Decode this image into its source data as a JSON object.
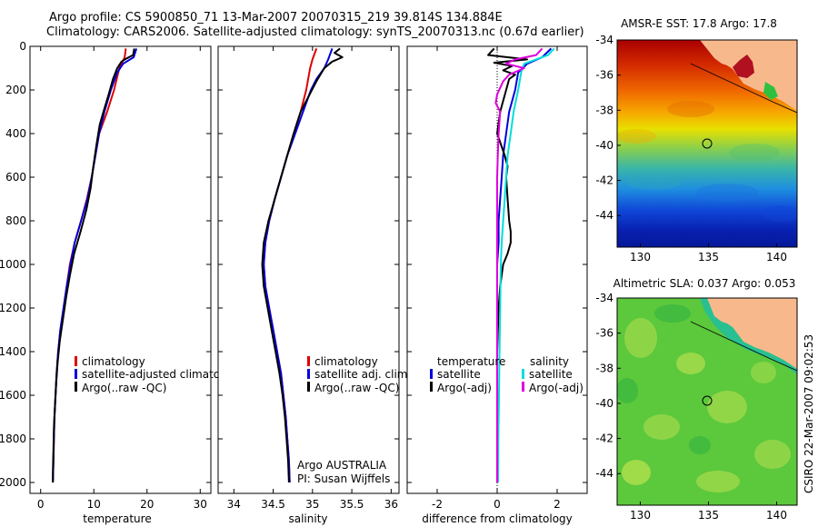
{
  "header": {
    "line1": "Argo profile: CS 5900850_71 13-Mar-2007 20070315_219 39.814S 134.884E",
    "line2": "Climatology: CARS2006. Satellite-adjusted climatology: synTS_20070313.nc (0.67d earlier)"
  },
  "footer": {
    "credit": "CSIRO 22-Mar-2007 09:02:53"
  },
  "colors": {
    "climatology": "#dd0000",
    "satellite": "#0000dd",
    "argo": "#000000",
    "salinity_satellite": "#00dddd",
    "salinity_argo": "#dd00dd",
    "land": "#f7b98c"
  },
  "chart_data": [
    {
      "id": "temperature",
      "type": "line",
      "xlabel": "temperature",
      "ylabel": "",
      "xlim": [
        -2,
        32
      ],
      "ylim": [
        2050,
        0
      ],
      "xticks": [
        0,
        10,
        20,
        30
      ],
      "yticks": [
        0,
        200,
        400,
        600,
        800,
        1000,
        1200,
        1400,
        1600,
        1800,
        2000
      ],
      "legend": {
        "placement": "bottom-right",
        "items": [
          "climatology",
          "satellite-adjusted climatology",
          "Argo(..raw -QC)"
        ]
      },
      "series": [
        {
          "name": "climatology",
          "color": "#dd0000",
          "points": [
            [
              16.0,
              10
            ],
            [
              15.8,
              50
            ],
            [
              14.8,
              100
            ],
            [
              13.8,
              200
            ],
            [
              12.5,
              300
            ],
            [
              11.0,
              400
            ],
            [
              10.3,
              500
            ],
            [
              9.6,
              600
            ],
            [
              8.7,
              700
            ],
            [
              7.6,
              800
            ],
            [
              6.4,
              900
            ],
            [
              5.5,
              1000
            ],
            [
              4.9,
              1100
            ],
            [
              4.3,
              1200
            ],
            [
              3.7,
              1300
            ],
            [
              3.3,
              1400
            ],
            [
              3.0,
              1500
            ],
            [
              2.8,
              1600
            ],
            [
              2.6,
              1700
            ],
            [
              2.5,
              1800
            ],
            [
              2.4,
              1900
            ],
            [
              2.3,
              1990
            ]
          ]
        },
        {
          "name": "satellite-adjusted climatology",
          "color": "#0000dd",
          "points": [
            [
              18.0,
              10
            ],
            [
              17.5,
              50
            ],
            [
              15.5,
              80
            ],
            [
              14.4,
              120
            ],
            [
              13.2,
              200
            ],
            [
              12.0,
              300
            ],
            [
              11.0,
              400
            ],
            [
              10.3,
              500
            ],
            [
              9.6,
              600
            ],
            [
              8.8,
              700
            ],
            [
              7.6,
              800
            ],
            [
              6.4,
              900
            ],
            [
              5.6,
              1000
            ],
            [
              4.9,
              1100
            ],
            [
              4.3,
              1200
            ],
            [
              3.7,
              1300
            ],
            [
              3.3,
              1400
            ],
            [
              3.0,
              1500
            ],
            [
              2.8,
              1600
            ],
            [
              2.6,
              1700
            ],
            [
              2.5,
              1800
            ],
            [
              2.4,
              1900
            ],
            [
              2.3,
              2000
            ]
          ]
        },
        {
          "name": "Argo(..raw -QC)",
          "color": "#000000",
          "points": [
            [
              17.6,
              10
            ],
            [
              17.4,
              40
            ],
            [
              16.2,
              55
            ],
            [
              15.2,
              70
            ],
            [
              14.4,
              100
            ],
            [
              13.6,
              150
            ],
            [
              12.8,
              220
            ],
            [
              11.8,
              300
            ],
            [
              11.1,
              360
            ],
            [
              10.5,
              450
            ],
            [
              9.9,
              550
            ],
            [
              9.4,
              650
            ],
            [
              8.6,
              750
            ],
            [
              7.5,
              850
            ],
            [
              6.3,
              950
            ],
            [
              5.5,
              1050
            ],
            [
              4.8,
              1150
            ],
            [
              4.2,
              1250
            ],
            [
              3.6,
              1350
            ],
            [
              3.2,
              1450
            ],
            [
              2.9,
              1550
            ],
            [
              2.7,
              1650
            ],
            [
              2.5,
              1750
            ],
            [
              2.4,
              1850
            ],
            [
              2.3,
              1950
            ],
            [
              2.3,
              2000
            ]
          ]
        }
      ]
    },
    {
      "id": "salinity",
      "type": "line",
      "xlabel": "salinity",
      "ylabel": "",
      "xlim": [
        33.8,
        36.1
      ],
      "ylim": [
        2050,
        0
      ],
      "xticks": [
        34,
        34.5,
        35,
        35.5,
        36
      ],
      "xticklabels": [
        "34",
        "34.5",
        "35",
        "35.5",
        "36"
      ],
      "legend": {
        "placement": "bottom-right",
        "items": [
          "climatology",
          "satellite adj. clim.",
          "Argo(..raw -QC)"
        ]
      },
      "annotations": [
        "Argo AUSTRALIA",
        "PI: Susan Wijffels"
      ],
      "series": [
        {
          "name": "climatology",
          "color": "#dd0000",
          "points": [
            [
              35.05,
              10
            ],
            [
              35.0,
              60
            ],
            [
              34.97,
              100
            ],
            [
              34.92,
              200
            ],
            [
              34.85,
              300
            ],
            [
              34.76,
              400
            ],
            [
              34.68,
              500
            ],
            [
              34.6,
              600
            ],
            [
              34.52,
              700
            ],
            [
              34.45,
              800
            ],
            [
              34.4,
              900
            ],
            [
              34.38,
              1000
            ],
            [
              34.4,
              1100
            ],
            [
              34.45,
              1200
            ],
            [
              34.5,
              1300
            ],
            [
              34.55,
              1400
            ],
            [
              34.6,
              1500
            ],
            [
              34.63,
              1600
            ],
            [
              34.66,
              1700
            ],
            [
              34.68,
              1800
            ],
            [
              34.7,
              1900
            ],
            [
              34.71,
              2000
            ]
          ]
        },
        {
          "name": "satellite adj. clim.",
          "color": "#0000dd",
          "points": [
            [
              35.25,
              10
            ],
            [
              35.2,
              60
            ],
            [
              35.15,
              100
            ],
            [
              35.05,
              150
            ],
            [
              34.98,
              200
            ],
            [
              34.88,
              300
            ],
            [
              34.78,
              400
            ],
            [
              34.68,
              500
            ],
            [
              34.6,
              600
            ],
            [
              34.52,
              700
            ],
            [
              34.45,
              800
            ],
            [
              34.4,
              900
            ],
            [
              34.38,
              1000
            ],
            [
              34.4,
              1100
            ],
            [
              34.45,
              1200
            ],
            [
              34.5,
              1300
            ],
            [
              34.55,
              1400
            ],
            [
              34.6,
              1500
            ],
            [
              34.63,
              1600
            ],
            [
              34.66,
              1700
            ],
            [
              34.68,
              1800
            ],
            [
              34.7,
              1900
            ],
            [
              34.71,
              2000
            ]
          ]
        },
        {
          "name": "Argo(..raw -QC)",
          "color": "#000000",
          "points": [
            [
              35.35,
              10
            ],
            [
              35.28,
              30
            ],
            [
              35.38,
              50
            ],
            [
              35.25,
              70
            ],
            [
              35.15,
              100
            ],
            [
              35.05,
              160
            ],
            [
              34.95,
              230
            ],
            [
              34.85,
              300
            ],
            [
              34.76,
              400
            ],
            [
              34.68,
              500
            ],
            [
              34.6,
              600
            ],
            [
              34.52,
              700
            ],
            [
              34.44,
              800
            ],
            [
              34.38,
              900
            ],
            [
              34.36,
              1000
            ],
            [
              34.38,
              1100
            ],
            [
              34.43,
              1200
            ],
            [
              34.48,
              1300
            ],
            [
              34.53,
              1400
            ],
            [
              34.58,
              1500
            ],
            [
              34.62,
              1600
            ],
            [
              34.65,
              1700
            ],
            [
              34.67,
              1800
            ],
            [
              34.69,
              1900
            ],
            [
              34.7,
              2000
            ]
          ]
        }
      ]
    },
    {
      "id": "difference",
      "type": "line",
      "xlabel": "difference from climatology",
      "ylabel": "",
      "xlim": [
        -3.0,
        3.0
      ],
      "ylim": [
        2050,
        0
      ],
      "xticks": [
        -2,
        0,
        2
      ],
      "legend": {
        "placement": "bottom",
        "items": [
          "temperature",
          "satellite",
          "Argo(-adj)",
          "salinity",
          "satellite",
          "Argo(-adj)"
        ]
      },
      "series": [
        {
          "name": "temperature satellite",
          "color": "#0000dd",
          "points": [
            [
              1.8,
              10
            ],
            [
              1.5,
              50
            ],
            [
              1.0,
              80
            ],
            [
              0.7,
              120
            ],
            [
              0.6,
              200
            ],
            [
              0.4,
              300
            ],
            [
              0.3,
              400
            ],
            [
              0.2,
              500
            ],
            [
              0.15,
              600
            ],
            [
              0.1,
              700
            ],
            [
              0.05,
              800
            ],
            [
              0.05,
              900
            ],
            [
              0.0,
              1000
            ],
            [
              0.0,
              1200
            ],
            [
              0.0,
              1400
            ],
            [
              0.0,
              1600
            ],
            [
              0.0,
              1800
            ],
            [
              0.0,
              2000
            ]
          ]
        },
        {
          "name": "temperature Argo(-adj)",
          "color": "#000000",
          "points": [
            [
              -0.1,
              10
            ],
            [
              -0.3,
              40
            ],
            [
              1.0,
              60
            ],
            [
              -0.1,
              75
            ],
            [
              0.5,
              90
            ],
            [
              0.2,
              110
            ],
            [
              0.6,
              130
            ],
            [
              0.4,
              150
            ],
            [
              0.3,
              200
            ],
            [
              0.2,
              250
            ],
            [
              0.1,
              300
            ],
            [
              0.05,
              350
            ],
            [
              0.0,
              400
            ],
            [
              0.25,
              500
            ],
            [
              0.35,
              550
            ],
            [
              0.3,
              600
            ],
            [
              0.35,
              700
            ],
            [
              0.4,
              800
            ],
            [
              0.45,
              850
            ],
            [
              0.45,
              900
            ],
            [
              0.35,
              950
            ],
            [
              0.2,
              1000
            ],
            [
              0.1,
              1100
            ],
            [
              0.05,
              1200
            ],
            [
              0.0,
              1400
            ],
            [
              0.0,
              1600
            ],
            [
              0.0,
              1800
            ],
            [
              0.0,
              2000
            ]
          ]
        },
        {
          "name": "salinity satellite",
          "color": "#00dddd",
          "points": [
            [
              1.9,
              10
            ],
            [
              1.7,
              40
            ],
            [
              0.9,
              80
            ],
            [
              0.8,
              120
            ],
            [
              0.7,
              200
            ],
            [
              0.55,
              300
            ],
            [
              0.45,
              400
            ],
            [
              0.35,
              500
            ],
            [
              0.3,
              600
            ],
            [
              0.25,
              700
            ],
            [
              0.2,
              800
            ],
            [
              0.15,
              900
            ],
            [
              0.12,
              1000
            ],
            [
              0.1,
              1200
            ],
            [
              0.08,
              1400
            ],
            [
              0.06,
              1600
            ],
            [
              0.04,
              1800
            ],
            [
              0.03,
              2000
            ]
          ]
        },
        {
          "name": "salinity Argo(-adj)",
          "color": "#dd00dd",
          "points": [
            [
              1.5,
              10
            ],
            [
              1.3,
              40
            ],
            [
              0.6,
              60
            ],
            [
              0.3,
              80
            ],
            [
              0.9,
              100
            ],
            [
              0.4,
              130
            ],
            [
              0.2,
              160
            ],
            [
              0.0,
              220
            ],
            [
              -0.05,
              260
            ],
            [
              0.1,
              300
            ],
            [
              0.05,
              400
            ],
            [
              0.02,
              500
            ],
            [
              0.0,
              600
            ],
            [
              0.0,
              800
            ],
            [
              0.0,
              1000
            ],
            [
              0.0,
              1200
            ],
            [
              0.0,
              1400
            ],
            [
              0.0,
              1600
            ],
            [
              0.0,
              1800
            ],
            [
              0.0,
              2000
            ]
          ]
        }
      ]
    },
    {
      "id": "sst-map",
      "type": "heatmap",
      "title": "AMSR-E SST: 17.8 Argo: 17.8",
      "xlim": [
        128.3,
        141.5
      ],
      "ylim": [
        -45.8,
        -34
      ],
      "xticks": [
        130,
        135,
        140
      ],
      "yticks": [
        -34,
        -36,
        -38,
        -40,
        -42,
        -44
      ],
      "yticklabels": [
        "-34",
        "-36",
        "-38",
        "-40",
        "-42",
        "-44"
      ],
      "marker": {
        "lon": 134.884,
        "lat": -39.814
      }
    },
    {
      "id": "sla-map",
      "type": "heatmap",
      "title": "Altimetric SLA: 0.037 Argo: 0.053",
      "xlim": [
        128.3,
        141.5
      ],
      "ylim": [
        -45.8,
        -34
      ],
      "xticks": [
        130,
        135,
        140
      ],
      "yticks": [
        -34,
        -36,
        -38,
        -40,
        -42,
        -44
      ],
      "yticklabels": [
        "-34",
        "-36",
        "-38",
        "-40",
        "-42",
        "-44"
      ],
      "marker": {
        "lon": 134.884,
        "lat": -39.814
      }
    }
  ]
}
